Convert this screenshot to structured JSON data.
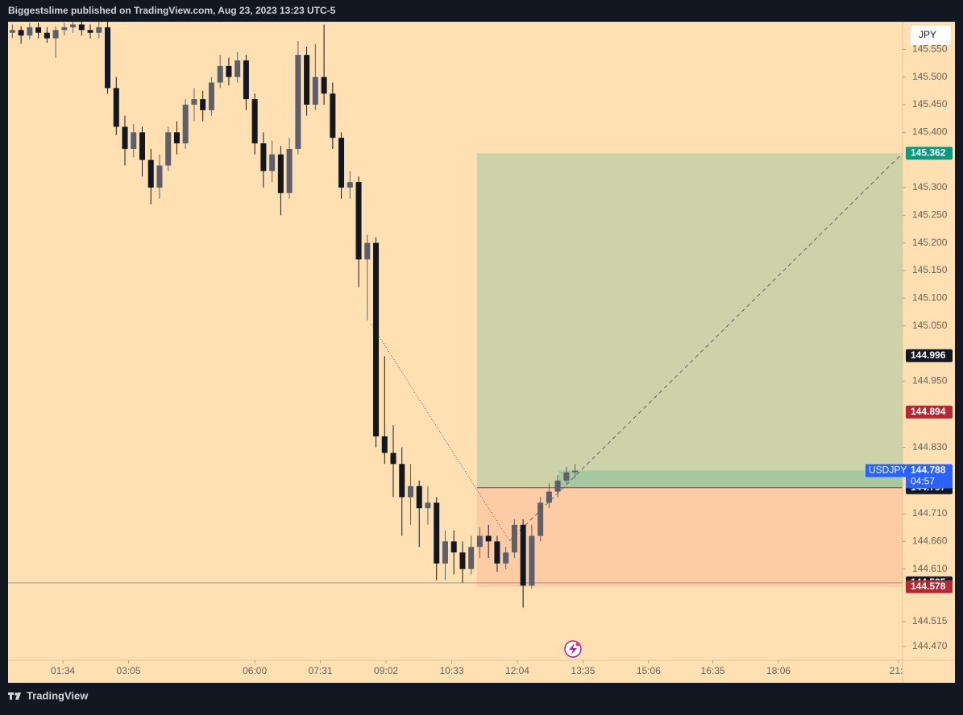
{
  "header": {
    "text": "Biggestslime published on TradingView.com, Aug 23, 2023 13:23 UTC-5"
  },
  "footer": {
    "brand": "TradingView"
  },
  "chart_data": {
    "type": "candlestick",
    "symbol": "USDJPY",
    "currency": "JPY",
    "countdown": "04:57",
    "background": "#ffe0b2",
    "up_color": "#5d606b",
    "down_color": "#131722",
    "x": [
      24,
      36,
      48,
      60,
      72,
      84,
      96,
      108,
      120,
      132,
      144,
      156,
      168,
      180,
      192,
      204,
      216,
      228,
      240,
      252,
      264,
      276,
      288,
      300,
      312,
      324,
      336,
      348,
      360,
      372,
      384,
      396,
      408,
      420,
      432,
      444,
      456,
      468,
      480,
      492,
      504,
      516,
      528,
      540,
      552,
      564,
      576,
      588,
      600,
      612,
      624,
      636,
      648,
      660,
      672,
      684,
      696,
      708,
      720,
      732,
      744,
      756,
      768,
      780,
      792,
      804
    ],
    "open": [
      145.58,
      145.585,
      145.575,
      145.59,
      145.58,
      145.57,
      145.585,
      145.59,
      145.595,
      145.585,
      145.58,
      145.59,
      145.48,
      145.41,
      145.37,
      145.4,
      145.35,
      145.3,
      145.34,
      145.4,
      145.38,
      145.45,
      145.46,
      145.44,
      145.49,
      145.52,
      145.5,
      145.53,
      145.46,
      145.38,
      145.33,
      145.36,
      145.29,
      145.37,
      145.54,
      145.45,
      145.5,
      145.47,
      145.39,
      145.3,
      145.31,
      145.17,
      145.2,
      144.85,
      144.82,
      144.8,
      144.74,
      144.76,
      144.72,
      144.73,
      144.62,
      144.66,
      144.64,
      144.61,
      144.65,
      144.67,
      144.66,
      144.62,
      144.64,
      144.69,
      144.58,
      144.67,
      144.73,
      144.75,
      144.77,
      144.785
    ],
    "high": [
      145.595,
      145.592,
      145.598,
      145.598,
      145.59,
      145.592,
      145.598,
      145.6,
      145.6,
      145.595,
      145.6,
      145.6,
      145.5,
      145.43,
      145.415,
      145.41,
      145.37,
      145.36,
      145.41,
      145.42,
      145.46,
      145.48,
      145.475,
      145.5,
      145.54,
      145.535,
      145.545,
      145.54,
      145.47,
      145.4,
      145.385,
      145.375,
      145.39,
      145.565,
      145.555,
      145.56,
      145.595,
      145.49,
      145.4,
      145.33,
      145.32,
      145.215,
      145.21,
      144.995,
      144.87,
      144.83,
      144.8,
      144.77,
      144.76,
      144.74,
      144.68,
      144.68,
      144.66,
      144.67,
      144.685,
      144.69,
      144.67,
      144.65,
      144.7,
      144.7,
      144.69,
      144.74,
      144.765,
      144.78,
      144.795,
      144.8
    ],
    "low": [
      145.57,
      145.56,
      145.568,
      145.57,
      145.562,
      145.535,
      145.575,
      145.58,
      145.575,
      145.57,
      145.57,
      145.47,
      145.395,
      145.34,
      145.355,
      145.32,
      145.27,
      145.28,
      145.33,
      145.36,
      145.37,
      145.42,
      145.42,
      145.43,
      145.48,
      145.485,
      145.49,
      145.44,
      145.36,
      145.3,
      145.31,
      145.25,
      145.28,
      145.36,
      145.43,
      145.44,
      145.45,
      145.37,
      145.28,
      145.28,
      145.12,
      145.06,
      144.83,
      144.8,
      144.74,
      144.67,
      144.69,
      144.65,
      144.69,
      144.59,
      144.59,
      144.6,
      144.585,
      144.6,
      144.63,
      144.63,
      144.605,
      144.61,
      144.63,
      144.54,
      144.575,
      144.66,
      144.72,
      144.74,
      144.765,
      144.775
    ],
    "close": [
      145.585,
      145.575,
      145.59,
      145.58,
      145.57,
      145.585,
      145.59,
      145.595,
      145.585,
      145.58,
      145.59,
      145.48,
      145.41,
      145.37,
      145.4,
      145.35,
      145.3,
      145.34,
      145.4,
      145.38,
      145.45,
      145.46,
      145.44,
      145.49,
      145.52,
      145.5,
      145.53,
      145.46,
      145.38,
      145.33,
      145.36,
      145.29,
      145.37,
      145.54,
      145.45,
      145.5,
      145.47,
      145.39,
      145.3,
      145.31,
      145.17,
      145.2,
      144.85,
      144.82,
      144.8,
      144.74,
      144.76,
      144.72,
      144.73,
      144.62,
      144.66,
      144.64,
      144.61,
      144.65,
      144.67,
      144.66,
      144.62,
      144.64,
      144.69,
      144.58,
      144.67,
      144.73,
      144.75,
      144.77,
      144.785,
      144.788
    ],
    "xlim": [
      18,
      1258
    ],
    "xticks": [
      {
        "value": 94,
        "label": "01:34"
      },
      {
        "value": 185,
        "label": "03:05"
      },
      {
        "value": 360,
        "label": "06:00"
      },
      {
        "value": 451,
        "label": "07:31"
      },
      {
        "value": 542,
        "label": "09:02"
      },
      {
        "value": 633,
        "label": "10:33"
      },
      {
        "value": 724,
        "label": "12:04"
      },
      {
        "value": 815,
        "label": "13:35"
      },
      {
        "value": 906,
        "label": "15:06"
      },
      {
        "value": 995,
        "label": "16:35"
      },
      {
        "value": 1086,
        "label": "18:06"
      },
      {
        "value": 1252,
        "label": "21:"
      }
    ],
    "ylim": [
      144.445,
      145.6
    ],
    "yticks": [
      {
        "value": 145.55,
        "label": "145.550"
      },
      {
        "value": 145.5,
        "label": "145.500"
      },
      {
        "value": 145.45,
        "label": "145.450"
      },
      {
        "value": 145.4,
        "label": "145.400"
      },
      {
        "value": 145.3,
        "label": "145.300"
      },
      {
        "value": 145.25,
        "label": "145.250"
      },
      {
        "value": 145.2,
        "label": "145.200"
      },
      {
        "value": 145.15,
        "label": "145.150"
      },
      {
        "value": 145.1,
        "label": "145.100"
      },
      {
        "value": 145.05,
        "label": "145.050"
      },
      {
        "value": 144.95,
        "label": "144.950"
      },
      {
        "value": 144.83,
        "label": "144.830"
      },
      {
        "value": 144.71,
        "label": "144.710"
      },
      {
        "value": 144.66,
        "label": "144.660"
      },
      {
        "value": 144.61,
        "label": "144.610"
      },
      {
        "value": 144.515,
        "label": "144.515"
      },
      {
        "value": 144.47,
        "label": "144.470"
      }
    ],
    "price_labels": [
      {
        "value": 144.996,
        "color": "#131722"
      },
      {
        "value": 144.894,
        "color": "#b22833"
      }
    ],
    "last_price_color": "#2962ff",
    "horizontal_line": 144.585,
    "position": {
      "start": 668,
      "entry": 144.757,
      "target": 145.362,
      "stop": 144.578,
      "target_color": "#089981",
      "stop_color": "#b22833",
      "entry_color": "#131722"
    },
    "lines": [
      {
        "points": [
          [
            522,
            145.052
          ],
          [
            713,
            144.661
          ]
        ],
        "style": "dotted"
      },
      {
        "points": [
          [
            713,
            144.661
          ],
          [
            1258,
            145.362
          ]
        ],
        "style": "dashed"
      }
    ]
  }
}
